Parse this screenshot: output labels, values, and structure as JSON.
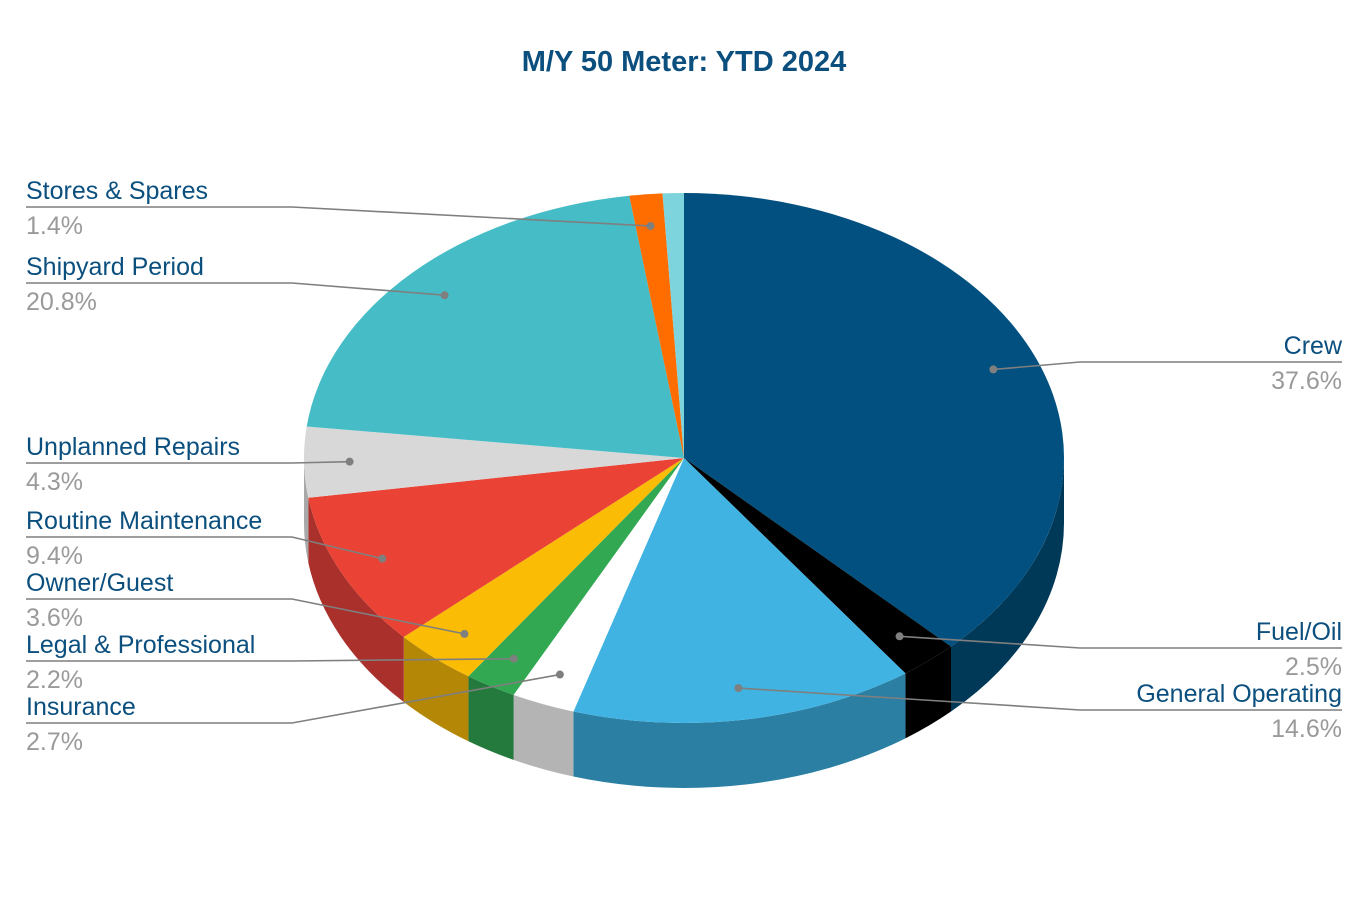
{
  "colors": {
    "title": "#0b4f7e",
    "label_name": "#0b4f7e",
    "label_pct": "#9a9a9a",
    "leader": "#7f7f7f",
    "background": "#ffffff"
  },
  "chart_data": {
    "type": "pie",
    "variant": "3d",
    "title": "M/Y 50 Meter: YTD 2024",
    "legend": "none",
    "slices": [
      {
        "name": "Crew",
        "value": 37.6,
        "label": "37.6%",
        "color": "#01507f",
        "side_color": "#003857",
        "label_side": "right"
      },
      {
        "name": "Fuel/Oil",
        "value": 2.5,
        "label": "2.5%",
        "color": "#000000",
        "side_color": "#000000",
        "label_side": "right"
      },
      {
        "name": "General Operating",
        "value": 14.6,
        "label": "14.6%",
        "color": "#41b3e3",
        "side_color": "#2b7fa3",
        "label_side": "right"
      },
      {
        "name": "Insurance",
        "value": 2.7,
        "label": "2.7%",
        "color": "#ffffff",
        "side_color": "#b4b4b4",
        "label_side": "left"
      },
      {
        "name": "Legal & Professional",
        "value": 2.2,
        "label": "2.2%",
        "color": "#33a853",
        "side_color": "#247a3c",
        "label_side": "left"
      },
      {
        "name": "Owner/Guest",
        "value": 3.6,
        "label": "3.6%",
        "color": "#fbbc05",
        "side_color": "#b48707",
        "label_side": "left"
      },
      {
        "name": "Routine Maintenance",
        "value": 9.4,
        "label": "9.4%",
        "color": "#ea4335",
        "side_color": "#a9302b",
        "label_side": "left"
      },
      {
        "name": "Unplanned Repairs",
        "value": 4.3,
        "label": "4.3%",
        "color": "#d8d8d8",
        "side_color": "#a8a8a8",
        "label_side": "left"
      },
      {
        "name": "Shipyard Period",
        "value": 20.8,
        "label": "20.8%",
        "color": "#46bdc6",
        "side_color": "#33888f",
        "label_side": "left"
      },
      {
        "name": "Stores & Spares",
        "value": 1.4,
        "label": "1.4%",
        "color": "#ff6d01",
        "side_color": "#b84f01",
        "label_side": "left"
      },
      {
        "name": "",
        "value": 0.9,
        "label": "",
        "color": "#7dd4dc",
        "side_color": "#5aa4aa",
        "label_side": "none"
      }
    ]
  }
}
